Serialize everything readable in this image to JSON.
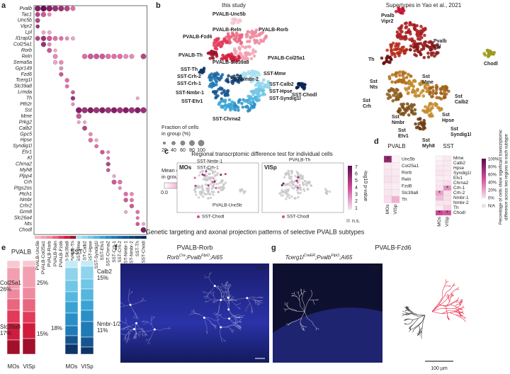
{
  "figure_title": "Genetic targeting and axonal projection patterns of selective PVALB subtypes",
  "panel_a": {
    "label": "a",
    "genes": [
      "Pvalb",
      "Tac1",
      "Unc5b",
      "Vipr2",
      "Lpl",
      "Il1rapl2",
      "Col25a1",
      "Rorb",
      "Reln",
      "Sema5a",
      "Gpr149",
      "Fzd6",
      "Tcerg1l",
      "Slc39a8",
      "Lrmda",
      "Th",
      "Pth2r",
      "Sst",
      "Mme",
      "Prkg2",
      "Calb2",
      "Gpc5",
      "Hpse",
      "Syndig1l",
      "Etv1",
      "Kl",
      "Chrna2",
      "Myh8",
      "Plpp4",
      "Crh",
      "Ptgs2os",
      "Ptch1",
      "Nmbr",
      "Crhr2",
      "Grm8",
      "Slc26a4",
      "Nts",
      "Chodl"
    ],
    "columns": [
      {
        "name": "PVALB-Unc5b",
        "color": "#f4b6c2"
      },
      {
        "name": "PVALB-Col25a1",
        "color": "#f29fb0"
      },
      {
        "name": "PVALB-Rorb",
        "color": "#ee8aa0"
      },
      {
        "name": "PVALB-Reln",
        "color": "#e9667f"
      },
      {
        "name": "PVALB-Fzd6",
        "color": "#e23a5a"
      },
      {
        "name": "PVALB-Slc39a8",
        "color": "#d01c3c"
      },
      {
        "name": "PVALB-Th",
        "color": "#a0102a"
      },
      {
        "name": "SST-Mme",
        "color": "#a8dff0"
      },
      {
        "name": "SST-Calb2",
        "color": "#8fd3ec"
      },
      {
        "name": "SST-Hpse",
        "color": "#72c6e6"
      },
      {
        "name": "SST-Syndig1l",
        "color": "#55b6de"
      },
      {
        "name": "SST-Etv1",
        "color": "#3aa3d4"
      },
      {
        "name": "SST-Chrna2",
        "color": "#2a8fc6"
      },
      {
        "name": "SST-Crh-1",
        "color": "#1f7bb6"
      },
      {
        "name": "SST-Crh-2",
        "color": "#1a67a3"
      },
      {
        "name": "SST-Nmbr-1",
        "color": "#165690"
      },
      {
        "name": "SST-Nmbr-2",
        "color": "#12457c"
      },
      {
        "name": "SST-Th",
        "color": "#0e3568"
      },
      {
        "name": "SST-Chodl",
        "color": "#0a2554"
      }
    ],
    "dots": [
      [
        0,
        0,
        90,
        0.9
      ],
      [
        0,
        1,
        95,
        1
      ],
      [
        0,
        2,
        95,
        0.9
      ],
      [
        0,
        3,
        90,
        0.8
      ],
      [
        0,
        4,
        85,
        0.8
      ],
      [
        0,
        5,
        80,
        0.7
      ],
      [
        0,
        6,
        60,
        0.5
      ],
      [
        1,
        0,
        60,
        0.7
      ],
      [
        1,
        1,
        70,
        0.6
      ],
      [
        1,
        2,
        40,
        0.4
      ],
      [
        2,
        0,
        60,
        0.7
      ],
      [
        3,
        0,
        40,
        0.8
      ],
      [
        4,
        1,
        40,
        0.3
      ],
      [
        4,
        2,
        40,
        0.3
      ],
      [
        5,
        0,
        60,
        0.7
      ],
      [
        5,
        1,
        70,
        0.8
      ],
      [
        5,
        2,
        70,
        0.6
      ],
      [
        5,
        3,
        60,
        0.5
      ],
      [
        5,
        4,
        50,
        0.5
      ],
      [
        5,
        5,
        40,
        0.4
      ],
      [
        5,
        6,
        40,
        0.3
      ],
      [
        6,
        1,
        70,
        0.8
      ],
      [
        6,
        2,
        40,
        0.4
      ],
      [
        7,
        2,
        60,
        0.6
      ],
      [
        7,
        3,
        30,
        0.3
      ],
      [
        8,
        3,
        60,
        0.4
      ],
      [
        8,
        8,
        70,
        0.5
      ],
      [
        8,
        9,
        80,
        0.6
      ],
      [
        8,
        10,
        80,
        0.6
      ],
      [
        8,
        11,
        80,
        0.6
      ],
      [
        8,
        12,
        70,
        0.5
      ],
      [
        8,
        13,
        70,
        0.5
      ],
      [
        8,
        14,
        70,
        0.5
      ],
      [
        8,
        15,
        60,
        0.4
      ],
      [
        8,
        16,
        60,
        0.4
      ],
      [
        8,
        18,
        80,
        0.7
      ],
      [
        9,
        3,
        50,
        0.3
      ],
      [
        9,
        4,
        50,
        0.4
      ],
      [
        10,
        4,
        40,
        0.4
      ],
      [
        11,
        4,
        50,
        0.6
      ],
      [
        12,
        5,
        50,
        0.5
      ],
      [
        13,
        5,
        40,
        0.5
      ],
      [
        14,
        6,
        40,
        0.6
      ],
      [
        15,
        6,
        50,
        0.8
      ],
      [
        15,
        17,
        30,
        0.3
      ],
      [
        16,
        6,
        30,
        0.4
      ],
      [
        17,
        7,
        95,
        0.9
      ],
      [
        17,
        8,
        95,
        0.8
      ],
      [
        17,
        9,
        95,
        0.9
      ],
      [
        17,
        10,
        95,
        0.8
      ],
      [
        17,
        11,
        95,
        0.9
      ],
      [
        17,
        12,
        95,
        0.8
      ],
      [
        17,
        13,
        95,
        0.9
      ],
      [
        17,
        14,
        95,
        0.8
      ],
      [
        17,
        15,
        95,
        0.9
      ],
      [
        17,
        16,
        95,
        0.8
      ],
      [
        17,
        17,
        95,
        0.9
      ],
      [
        17,
        18,
        95,
        0.8
      ],
      [
        18,
        7,
        70,
        0.6
      ],
      [
        19,
        7,
        30,
        0.3
      ],
      [
        19,
        8,
        30,
        0.3
      ],
      [
        20,
        8,
        60,
        0.7
      ],
      [
        21,
        9,
        40,
        0.4
      ],
      [
        22,
        9,
        50,
        0.5
      ],
      [
        22,
        10,
        30,
        0.3
      ],
      [
        23,
        10,
        40,
        0.5
      ],
      [
        24,
        11,
        50,
        0.6
      ],
      [
        24,
        12,
        30,
        0.4
      ],
      [
        25,
        12,
        30,
        0.5
      ],
      [
        26,
        12,
        50,
        0.7
      ],
      [
        27,
        12,
        40,
        0.6
      ],
      [
        28,
        13,
        30,
        0.3
      ],
      [
        29,
        13,
        60,
        0.6
      ],
      [
        29,
        14,
        50,
        0.5
      ],
      [
        30,
        14,
        30,
        0.4
      ],
      [
        31,
        15,
        50,
        0.5
      ],
      [
        31,
        16,
        40,
        0.4
      ],
      [
        32,
        15,
        50,
        0.6
      ],
      [
        32,
        16,
        40,
        0.5
      ],
      [
        33,
        16,
        50,
        0.6
      ],
      [
        34,
        15,
        30,
        0.3
      ],
      [
        34,
        17,
        40,
        0.5
      ],
      [
        35,
        17,
        30,
        0.5
      ],
      [
        36,
        17,
        40,
        0.6
      ],
      [
        36,
        18,
        30,
        0.3
      ],
      [
        37,
        18,
        80,
        0.9
      ]
    ]
  },
  "legend_fraction": {
    "title": [
      "Fraction of cells",
      "in group (%)"
    ],
    "ticks": [
      20,
      40,
      60,
      80,
      100
    ]
  },
  "legend_expression": {
    "title": [
      "Mean expression",
      "in group"
    ],
    "ticks": [
      "0.0",
      "0.5",
      "1.0"
    ]
  },
  "panel_b": {
    "label": "b",
    "left_title": "this study",
    "right_title": "Supertypes in Yao et al., 2021",
    "left_labels": [
      {
        "text": "PVALB-Unc5b",
        "color": "#f4c6cf"
      },
      {
        "text": "PVALB-Reln",
        "color": "#e9667f"
      },
      {
        "text": "PVALB-Rorb",
        "color": "#ee8aa0"
      },
      {
        "text": "PVALB-Fzd6",
        "color": "#e23a5a"
      },
      {
        "text": "PVALB-Col25a1",
        "color": "#f29fb0"
      },
      {
        "text": "PVALB-Th",
        "color": "#a0102a"
      },
      {
        "text": "PVALB-Slc39a8",
        "color": "#d01c3c"
      },
      {
        "text": "SST-Th",
        "color": "#0e3568"
      },
      {
        "text": "SST-Crh-2",
        "color": "#1a67a3"
      },
      {
        "text": "SST-Crh-1",
        "color": "#1f7bb6"
      },
      {
        "text": "SST-Mme",
        "color": "#a8dff0"
      },
      {
        "text": "SST-Nmbr-2",
        "color": "#12457c"
      },
      {
        "text": "SST-Calb2",
        "color": "#8fd3ec"
      },
      {
        "text": "SST-Hpse",
        "color": "#72c6e6"
      },
      {
        "text": "SST-Syndig1l",
        "color": "#55b6de"
      },
      {
        "text": "SST-Nmbr-1",
        "color": "#165690"
      },
      {
        "text": "SST-Etv1",
        "color": "#3aa3d4"
      },
      {
        "text": "SST-Chrna2",
        "color": "#2a8fc6"
      },
      {
        "text": "SST-Chodl",
        "color": "#0a2554"
      }
    ],
    "right_labels": [
      {
        "lines": [
          "Pvalb",
          "Vipr2"
        ],
        "color": "#c0102a"
      },
      {
        "lines": [
          "Pvalb",
          "Lpl"
        ],
        "color": "#9c1414"
      },
      {
        "lines": [
          "Th"
        ],
        "color": "#6b0d10"
      },
      {
        "lines": [
          "Chodl"
        ],
        "color": "#8a8a10"
      },
      {
        "lines": [
          "Sst",
          "Nts"
        ],
        "color": "#8b5a1a"
      },
      {
        "lines": [
          "Sst",
          "Crh"
        ],
        "color": "#8b5a1a"
      },
      {
        "lines": [
          "Sst",
          "Mme"
        ],
        "color": "#b0701a"
      },
      {
        "lines": [
          "Sst",
          "Calb2"
        ],
        "color": "#8b5a1a"
      },
      {
        "lines": [
          "Sst",
          "Nmbr"
        ],
        "color": "#7a4a12"
      },
      {
        "lines": [
          "Sst",
          "Hpse"
        ],
        "color": "#b0701a"
      },
      {
        "lines": [
          "Sst",
          "Etv1"
        ],
        "color": "#8b5a1a"
      },
      {
        "lines": [
          "Sst",
          "Syndig1l"
        ],
        "color": "#b0701a"
      },
      {
        "lines": [
          "Sst",
          "Myh8"
        ],
        "color": "#6b3a0e"
      }
    ]
  },
  "panel_c": {
    "label": "c",
    "title": "Regional transcrptomic difference test for individual cells",
    "maps": [
      {
        "name": "MOs",
        "labels": [
          "SST-Nmbr-1",
          "SST-Crh-1",
          "PVALB-Unc5b"
        ],
        "footer": "SST-Chodl"
      },
      {
        "name": "VISp",
        "labels": [
          "PVALB-Th"
        ],
        "footer": "SST-Chodl"
      }
    ],
    "colorbar_label": "-log10 p-value",
    "colorbar_ticks": [
      7,
      6,
      5,
      4,
      3,
      2,
      1
    ],
    "ns_label": "n.s."
  },
  "panel_d": {
    "label": "d",
    "columns": [
      "MOs",
      "VISp"
    ],
    "star_symbol": "*",
    "groups": [
      {
        "name": "PVALB",
        "color": "#e8213f",
        "rows": [
          {
            "name": "Unc5b",
            "color": "#f4b6c2",
            "values": [
              85,
              5
            ],
            "significant": [
              true,
              false
            ]
          },
          {
            "name": "Col25a1",
            "color": "#f29fb0",
            "values": [
              10,
              8
            ],
            "significant": [
              false,
              false
            ]
          },
          {
            "name": "Rorb",
            "color": "#ee8aa0",
            "values": [
              12,
              10
            ],
            "significant": [
              false,
              false
            ]
          },
          {
            "name": "Reln",
            "color": "#e9667f",
            "values": [
              15,
              12
            ],
            "significant": [
              false,
              false
            ]
          },
          {
            "name": "Fzd6",
            "color": "#e23a5a",
            "values": [
              10,
              8
            ],
            "significant": [
              false,
              false
            ]
          },
          {
            "name": "Slc39a8",
            "color": "#d01c3c",
            "values": [
              12,
              10
            ],
            "significant": [
              false,
              false
            ]
          },
          {
            "name": "Th",
            "color": "#a0102a",
            "values": [
              15,
              35
            ],
            "significant": [
              false,
              false
            ]
          }
        ]
      },
      {
        "name": "SST",
        "color": "#1f7bb6",
        "rows": [
          {
            "name": "Mme",
            "color": "#a8dff0",
            "values": [
              5,
              10
            ],
            "significant": [
              false,
              false
            ]
          },
          {
            "name": "Calb2",
            "color": "#8fd3ec",
            "values": [
              8,
              10
            ],
            "significant": [
              false,
              false
            ]
          },
          {
            "name": "Hpse",
            "color": "#72c6e6",
            "values": [
              10,
              10
            ],
            "significant": [
              false,
              false
            ]
          },
          {
            "name": "Syndig1l",
            "color": "#55b6de",
            "values": [
              12,
              10
            ],
            "significant": [
              false,
              false
            ]
          },
          {
            "name": "Etv1",
            "color": "#3aa3d4",
            "values": [
              8,
              8
            ],
            "significant": [
              false,
              false
            ]
          },
          {
            "name": "Chrna2",
            "color": "#2a8fc6",
            "values": [
              10,
              15
            ],
            "significant": [
              false,
              false
            ]
          },
          {
            "name": "Crh-1",
            "color": "#1f7bb6",
            "values": [
              12,
              45
            ],
            "significant": [
              false,
              true
            ]
          },
          {
            "name": "Crh-2",
            "color": "#1a67a3",
            "values": [
              40,
              15
            ],
            "significant": [
              true,
              false
            ]
          },
          {
            "name": "Nmbr-1",
            "color": "#165690",
            "values": [
              30,
              15
            ],
            "significant": [
              false,
              false
            ]
          },
          {
            "name": "Nmbr-2",
            "color": "#12457c",
            "values": [
              12,
              12
            ],
            "significant": [
              false,
              false
            ]
          },
          {
            "name": "Th",
            "color": "#0e3568",
            "values": [
              8,
              20
            ],
            "significant": [
              false,
              false
            ]
          },
          {
            "name": "Chodl",
            "color": "#0a2554",
            "values": [
              70,
              65
            ],
            "significant": [
              true,
              true
            ]
          }
        ]
      }
    ],
    "colorbar_ticks": [
      "100%",
      "80%",
      "60%",
      "40%",
      "20%",
      "0%"
    ],
    "na_label": "N/A",
    "colorbar_title": [
      "Percentage of cells show significant transcriptomic",
      "difference across two regions in each subtype"
    ]
  },
  "panel_e": {
    "label": "e",
    "groups": [
      {
        "name": "PVALB",
        "color": "#e8213f"
      },
      {
        "name": "SST",
        "color": "#1f9bd7"
      }
    ],
    "annotations": [
      {
        "lines": [
          "Col25a1",
          "26%"
        ],
        "color": "#f29fb0"
      },
      {
        "lines": [
          "25%"
        ],
        "color": "#f29fb0"
      },
      {
        "lines": [
          "Slc39a8",
          "17%"
        ],
        "color": "#d01c3c"
      },
      {
        "lines": [
          "15%"
        ],
        "color": "#d01c3c"
      },
      {
        "lines": [
          "Calb2",
          "15%"
        ],
        "color": "#8fd3ec"
      },
      {
        "lines": [
          "18%"
        ],
        "color": "#1a5aa0"
      },
      {
        "lines": [
          "Nmbr-1/2",
          "11%"
        ],
        "color": "#1a5aa0"
      }
    ],
    "x_labels": [
      "MOs",
      "VISp",
      "MOs",
      "VISp"
    ]
  },
  "panel_f": {
    "label": "f",
    "title": "PVALB-Rorb",
    "genotype": [
      {
        "text": "Rorb"
      },
      {
        "text": "Cre",
        "sup": true
      },
      {
        "text": ";Pvalb"
      },
      {
        "text": "FlpO",
        "sup": true
      },
      {
        "text": ";Ai65"
      }
    ],
    "region": "VISp"
  },
  "panel_g": {
    "label": "g",
    "title": "PVALB-Fzd6",
    "genotype": [
      {
        "text": "Tcerg1l"
      },
      {
        "text": "CreER",
        "sup": true
      },
      {
        "text": ";Pvalb"
      },
      {
        "text": "FlpO",
        "sup": true
      },
      {
        "text": ";Ai65"
      }
    ],
    "region": "VISp",
    "scale_bar": "100 µm"
  }
}
